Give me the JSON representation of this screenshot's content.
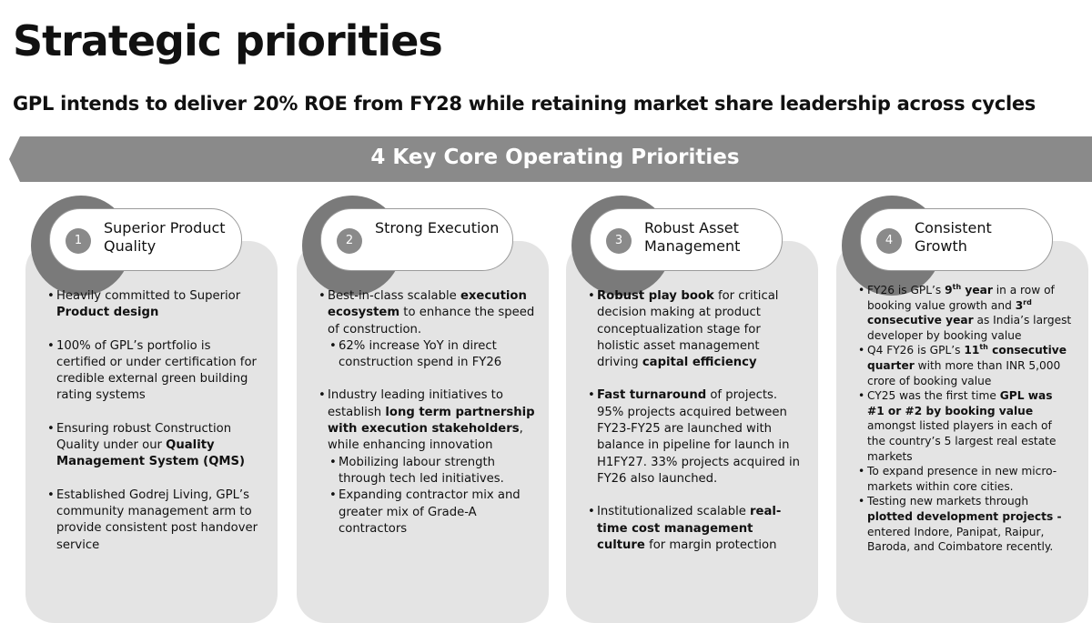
{
  "title": "Strategic priorities",
  "subtitle": "GPL intends to deliver 20% ROE from FY28 while retaining market share leadership across cycles",
  "banner": "4 Key Core Operating Priorities",
  "columns": [
    {
      "number": "1",
      "heading": "Superior Product Quality",
      "bullets": [
        {
          "runs": [
            {
              "text": "Heavily committed to Superior "
            },
            {
              "text": "Product design",
              "bold": true
            }
          ]
        },
        {
          "runs": [
            {
              "text": "100% of GPL’s portfolio is certified or under certification for credible external green building rating systems"
            }
          ]
        },
        {
          "runs": [
            {
              "text": "Ensuring robust Construction Quality under our "
            },
            {
              "text": "Quality Management System (QMS)",
              "bold": true
            }
          ]
        },
        {
          "runs": [
            {
              "text": "Established Godrej Living, GPL’s community management arm to provide consistent post handover service"
            }
          ]
        }
      ]
    },
    {
      "number": "2",
      "heading": "Strong Execution",
      "bullets": [
        {
          "runs": [
            {
              "text": "Best-in-class scalable "
            },
            {
              "text": "execution ecosystem",
              "bold": true
            },
            {
              "text": " to enhance the speed of construction."
            }
          ],
          "sub": [
            {
              "runs": [
                {
                  "text": "62% increase YoY in direct construction spend in FY26"
                }
              ]
            }
          ]
        },
        {
          "runs": [
            {
              "text": "Industry leading initiatives to establish "
            },
            {
              "text": "long term partnership with execution stakeholders",
              "bold": true
            },
            {
              "text": ", while enhancing innovation"
            }
          ],
          "sub": [
            {
              "runs": [
                {
                  "text": "Mobilizing labour strength through tech led initiatives."
                }
              ]
            },
            {
              "runs": [
                {
                  "text": "Expanding contractor mix and greater mix of Grade-A contractors"
                }
              ]
            }
          ]
        }
      ]
    },
    {
      "number": "3",
      "heading": "Robust Asset Management",
      "bullets": [
        {
          "runs": [
            {
              "text": "Robust play book",
              "bold": true
            },
            {
              "text": " for critical decision making at product conceptualization stage for holistic asset management driving "
            },
            {
              "text": "capital efficiency",
              "bold": true
            }
          ]
        },
        {
          "runs": [
            {
              "text": "Fast turnaround",
              "bold": true
            },
            {
              "text": " of projects. 95% projects acquired between FY23-FY25 are launched with balance in pipeline for launch in H1FY27. 33% projects acquired in FY26 also launched."
            }
          ]
        },
        {
          "runs": [
            {
              "text": "Institutionalized scalable "
            },
            {
              "text": "real-time cost management culture",
              "bold": true
            },
            {
              "text": " for margin protection"
            }
          ]
        }
      ]
    },
    {
      "number": "4",
      "heading": "Consistent Growth",
      "bullets": [
        {
          "runs": [
            {
              "text": "FY26 is GPL’s "
            },
            {
              "text": "9",
              "bold": true
            },
            {
              "text": "th",
              "bold": true,
              "sup": true
            },
            {
              "text": " year",
              "bold": true
            },
            {
              "text": " in a row of booking value growth and "
            },
            {
              "text": "3",
              "bold": true
            },
            {
              "text": "rd",
              "bold": true,
              "sup": true
            },
            {
              "text": " consecutive year",
              "bold": true
            },
            {
              "text": " as India’s largest developer by booking value"
            }
          ]
        },
        {
          "runs": [
            {
              "text": "Q4 FY26 is GPL’s "
            },
            {
              "text": "11",
              "bold": true
            },
            {
              "text": "th",
              "bold": true,
              "sup": true
            },
            {
              "text": " consecutive quarter",
              "bold": true
            },
            {
              "text": " with more than INR 5,000 crore of booking value"
            }
          ]
        },
        {
          "runs": [
            {
              "text": "CY25 was the first time "
            },
            {
              "text": "GPL was #1 or #2 by booking value",
              "bold": true
            },
            {
              "text": " amongst listed players in each of the country’s  5 largest real estate markets"
            }
          ]
        },
        {
          "runs": [
            {
              "text": "To expand presence in new micro-markets within core cities."
            }
          ]
        },
        {
          "runs": [
            {
              "text": "Testing new markets through "
            },
            {
              "text": "plotted development projects -",
              "bold": true
            },
            {
              "text": " entered Indore, Panipat, Raipur, Baroda, and Coimbatore recently."
            }
          ]
        }
      ]
    }
  ]
}
